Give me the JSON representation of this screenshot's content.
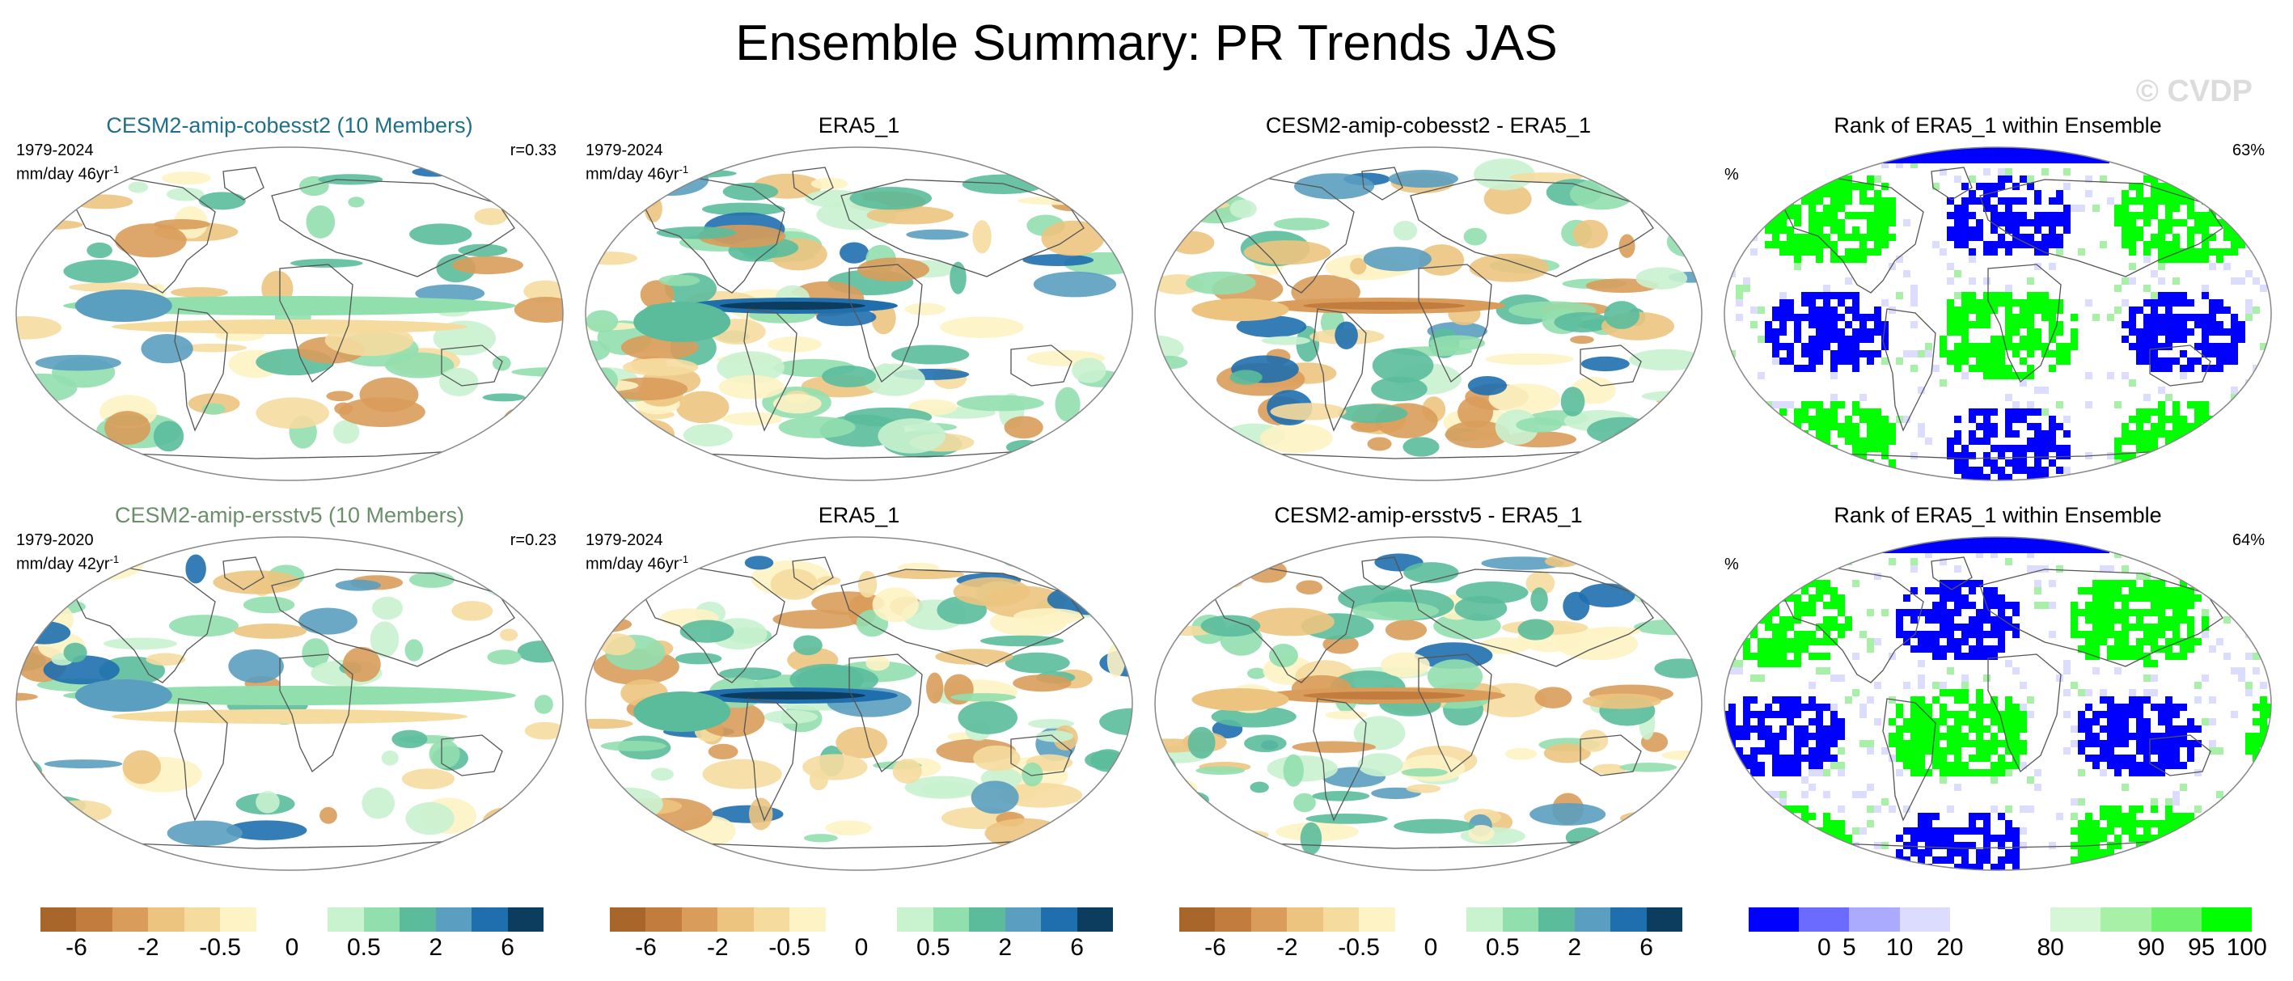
{
  "title": "Ensemble Summary: PR Trends JAS",
  "watermark": "© CVDP",
  "colors": {
    "model_title_row1": "#1f6f8b",
    "model_title_row2": "#6a8f6a",
    "diverging_scale": [
      "#a8662b",
      "#c27d3e",
      "#d99c5a",
      "#ecc47f",
      "#f5dc9e",
      "#fdf3c4",
      "#ffffff",
      "#ffffff",
      "#c9f2cf",
      "#92dfae",
      "#5bbc9c",
      "#5a9fc0",
      "#1f6fae",
      "#0c3c5e"
    ],
    "rank_scale": [
      "#0000ff",
      "#6b6bff",
      "#aaaaff",
      "#dcdcff",
      "#ffffff",
      "#ffffff",
      "#d6f7d6",
      "#a8f0a8",
      "#6ef26e",
      "#00ff00"
    ]
  },
  "rows": [
    {
      "panels": [
        {
          "title": "CESM2-amip-cobesst2 (10 Members)",
          "years": "1979-2024",
          "units": "mm/day 46yr",
          "units_sup": "-1",
          "corr": "r=0.33",
          "kind": "model"
        },
        {
          "title": "ERA5_1",
          "years": "1979-2024",
          "units": "mm/day 46yr",
          "units_sup": "-1",
          "corr": "",
          "kind": "obs"
        },
        {
          "title": "CESM2-amip-cobesst2 - ERA5_1",
          "years": "",
          "units": "",
          "units_sup": "",
          "corr": "",
          "kind": "diff"
        },
        {
          "title": "Rank of ERA5_1 within Ensemble",
          "years": "",
          "units": "%",
          "units_sup": "",
          "corr": "63%",
          "kind": "rank"
        }
      ]
    },
    {
      "panels": [
        {
          "title": "CESM2-amip-ersstv5 (10 Members)",
          "years": "1979-2020",
          "units": "mm/day 42yr",
          "units_sup": "-1",
          "corr": "r=0.23",
          "kind": "model"
        },
        {
          "title": "ERA5_1",
          "years": "1979-2024",
          "units": "mm/day 46yr",
          "units_sup": "-1",
          "corr": "",
          "kind": "obs"
        },
        {
          "title": "CESM2-amip-ersstv5 - ERA5_1",
          "years": "",
          "units": "",
          "units_sup": "",
          "corr": "",
          "kind": "diff"
        },
        {
          "title": "Rank of ERA5_1 within Ensemble",
          "years": "",
          "units": "%",
          "units_sup": "",
          "corr": "64%",
          "kind": "rank"
        }
      ]
    }
  ],
  "colorbars": [
    {
      "ticks": [
        "-6",
        "-2",
        "-0.5",
        "0",
        "0.5",
        "2",
        "6"
      ]
    },
    {
      "ticks": [
        "-6",
        "-2",
        "-0.5",
        "0",
        "0.5",
        "2",
        "6"
      ]
    },
    {
      "ticks": [
        "-6",
        "-2",
        "-0.5",
        "0",
        "0.5",
        "2",
        "6"
      ]
    },
    {
      "ticks": [
        "0",
        "5",
        "10",
        "20",
        "80",
        "90",
        "95",
        "100"
      ]
    }
  ]
}
